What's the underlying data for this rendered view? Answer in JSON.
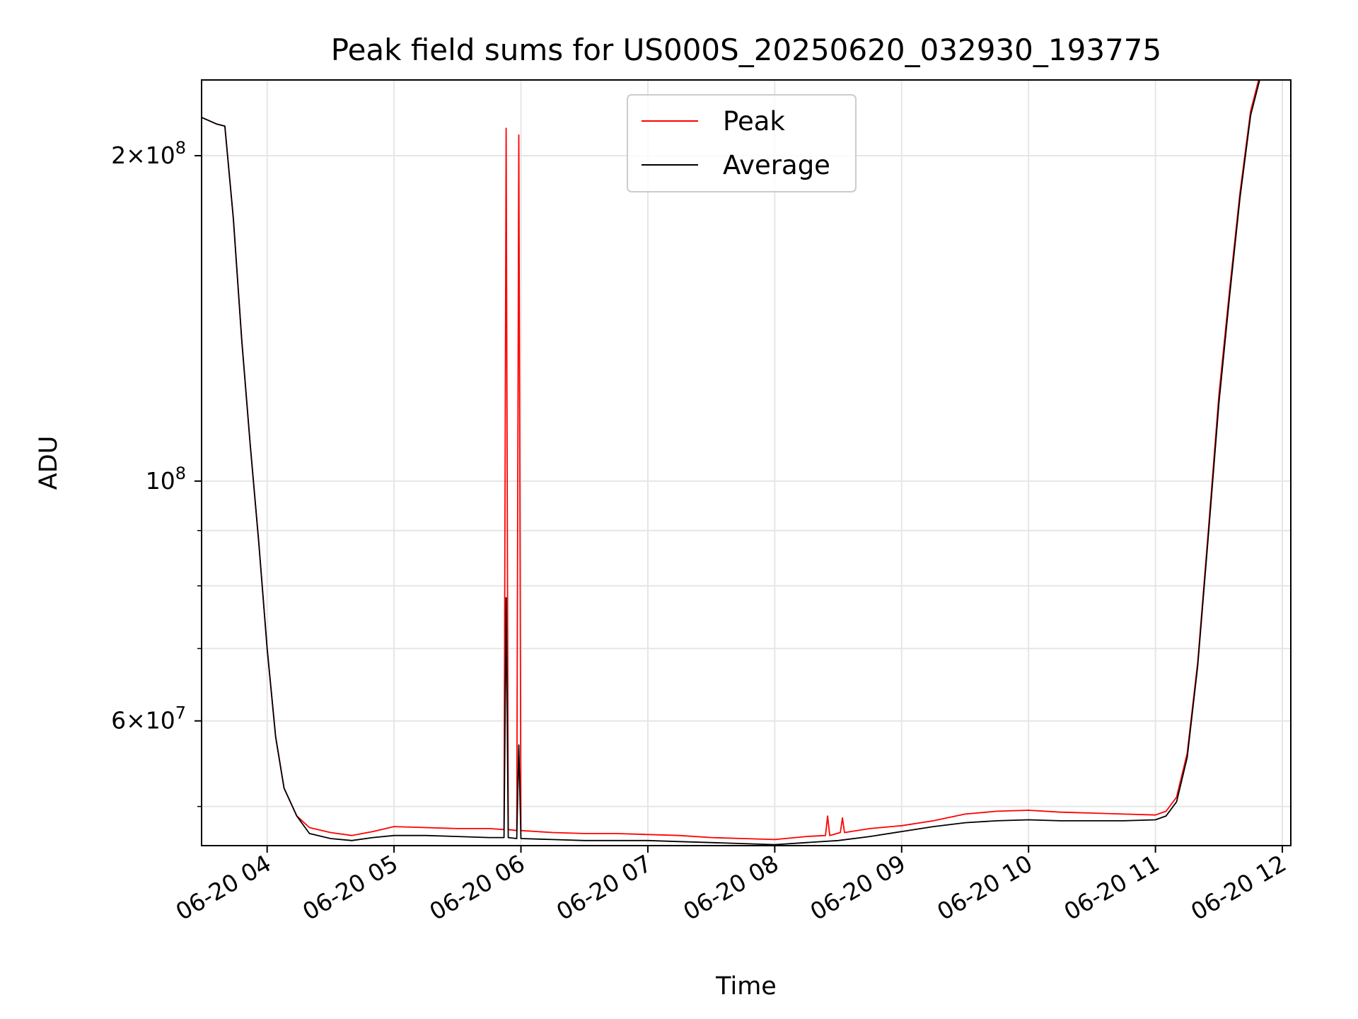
{
  "chart_data": {
    "type": "line",
    "title": "Peak field sums for US000S_20250620_032930_193775",
    "xlabel": "Time",
    "ylabel": "ADU",
    "yscale": "log",
    "grid": true,
    "legend_position": "top-center",
    "xlim": [
      "2025-06-20T03:29",
      "2025-06-20T12:04"
    ],
    "ylim": [
      46000000,
      235000000
    ],
    "x_ticks": [
      "06-20 04",
      "06-20 05",
      "06-20 06",
      "06-20 07",
      "06-20 08",
      "06-20 09",
      "06-20 10",
      "06-20 11",
      "06-20 12"
    ],
    "y_ticks": [
      {
        "value": 200000000,
        "base": "2×10",
        "exp": "8"
      },
      {
        "value": 100000000,
        "base": "10",
        "exp": "8"
      },
      {
        "value": 60000000,
        "base": "6×10",
        "exp": "7"
      }
    ],
    "series": [
      {
        "name": "Peak",
        "color": "#ff0000",
        "x": [
          "03:29",
          "03:36",
          "03:40",
          "03:44",
          "03:48",
          "03:52",
          "03:56",
          "04:00",
          "04:04",
          "04:08",
          "04:14",
          "04:20",
          "04:30",
          "04:40",
          "04:50",
          "05:00",
          "05:15",
          "05:30",
          "05:45",
          "05:52",
          "05:53",
          "05:54",
          "05:58",
          "05:59",
          "06:00",
          "06:15",
          "06:30",
          "06:45",
          "07:00",
          "07:15",
          "07:30",
          "07:45",
          "08:00",
          "08:15",
          "08:24",
          "08:25",
          "08:26",
          "08:31",
          "08:32",
          "08:33",
          "08:45",
          "09:00",
          "09:15",
          "09:30",
          "09:45",
          "10:00",
          "10:15",
          "10:30",
          "10:45",
          "11:00",
          "11:05",
          "11:10",
          "11:15",
          "11:20",
          "11:25",
          "11:30",
          "11:35",
          "11:40",
          "11:45",
          "11:50",
          "11:55",
          "11:58"
        ],
        "values": [
          217000000,
          214000000,
          213000000,
          175000000,
          135000000,
          108000000,
          88000000,
          70000000,
          58000000,
          52000000,
          49000000,
          47800000,
          47300000,
          47000000,
          47400000,
          47900000,
          47800000,
          47700000,
          47700000,
          47600000,
          212000000,
          47600000,
          47500000,
          209000000,
          47500000,
          47300000,
          47200000,
          47200000,
          47100000,
          47000000,
          46800000,
          46700000,
          46600000,
          46900000,
          47000000,
          49000000,
          47000000,
          47300000,
          48800000,
          47300000,
          47700000,
          48000000,
          48500000,
          49200000,
          49500000,
          49600000,
          49400000,
          49300000,
          49200000,
          49100000,
          49500000,
          51000000,
          56000000,
          68000000,
          90000000,
          120000000,
          150000000,
          185000000,
          220000000,
          240000000,
          240000000,
          240000000
        ]
      },
      {
        "name": "Average",
        "color": "#000000",
        "x": [
          "03:29",
          "03:36",
          "03:40",
          "03:44",
          "03:48",
          "03:52",
          "03:56",
          "04:00",
          "04:04",
          "04:08",
          "04:14",
          "04:20",
          "04:30",
          "04:40",
          "04:50",
          "05:00",
          "05:15",
          "05:30",
          "05:45",
          "05:52",
          "05:53",
          "05:54",
          "05:58",
          "05:59",
          "06:00",
          "06:15",
          "06:30",
          "06:45",
          "07:00",
          "07:15",
          "07:30",
          "07:45",
          "08:00",
          "08:15",
          "08:30",
          "08:45",
          "09:00",
          "09:15",
          "09:30",
          "09:45",
          "10:00",
          "10:15",
          "10:30",
          "10:45",
          "11:00",
          "11:05",
          "11:10",
          "11:15",
          "11:20",
          "11:25",
          "11:30",
          "11:35",
          "11:40",
          "11:45",
          "11:50",
          "11:55",
          "11:58"
        ],
        "values": [
          217000000,
          214000000,
          213000000,
          175000000,
          135000000,
          108000000,
          88000000,
          70000000,
          58000000,
          52000000,
          49000000,
          47200000,
          46700000,
          46500000,
          46800000,
          47000000,
          47000000,
          46900000,
          46800000,
          46800000,
          78000000,
          46800000,
          46700000,
          57000000,
          46700000,
          46600000,
          46500000,
          46500000,
          46500000,
          46400000,
          46300000,
          46200000,
          46100000,
          46300000,
          46500000,
          46900000,
          47400000,
          47900000,
          48300000,
          48500000,
          48600000,
          48500000,
          48500000,
          48500000,
          48600000,
          49000000,
          50500000,
          55500000,
          67500000,
          89000000,
          118000000,
          148000000,
          183000000,
          218000000,
          238000000,
          240000000,
          240000000
        ]
      }
    ]
  }
}
